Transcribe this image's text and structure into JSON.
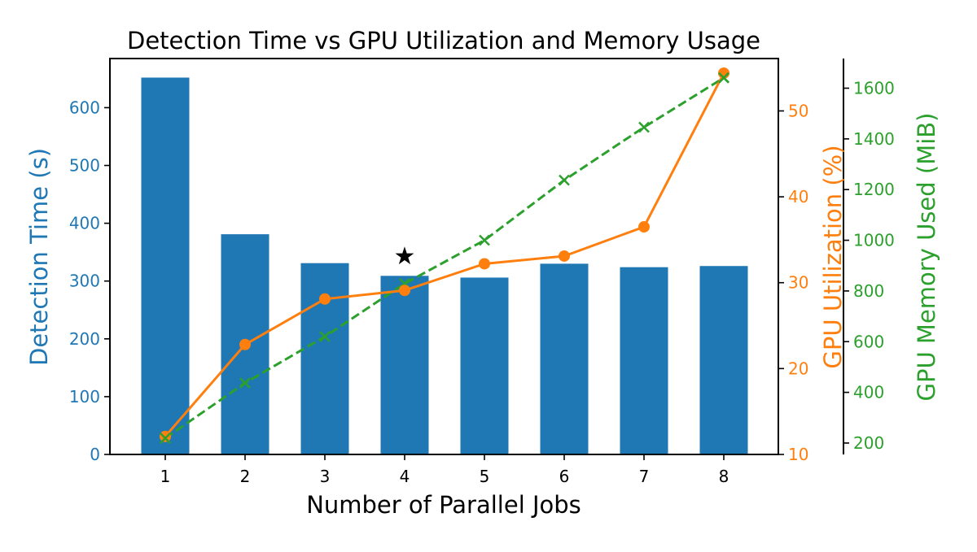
{
  "chart_data": {
    "type": "bar",
    "title": "Detection Time vs GPU Utilization and Memory Usage",
    "xlabel": "Number of Parallel Jobs",
    "categories": [
      "1",
      "2",
      "3",
      "4",
      "5",
      "6",
      "7",
      "8"
    ],
    "series": [
      {
        "name": "Detection Time (s)",
        "type": "bar",
        "axis": "left",
        "color": "#1f77b4",
        "values": [
          652,
          381,
          331,
          309,
          306,
          330,
          324,
          326
        ]
      },
      {
        "name": "GPU Utilization (%)",
        "type": "line",
        "axis": "right1",
        "color": "#ff7f0e",
        "marker": "circle",
        "linestyle": "solid",
        "values": [
          12.1,
          22.8,
          28.1,
          29.1,
          32.2,
          33.1,
          36.5,
          54.4
        ]
      },
      {
        "name": "GPU Memory Used (MiB)",
        "type": "line",
        "axis": "right2",
        "color": "#2ca02c",
        "marker": "x",
        "linestyle": "dashed",
        "values": [
          219,
          437,
          620,
          829,
          1000,
          1237,
          1446,
          1641
        ]
      }
    ],
    "axes": {
      "left": {
        "label": "Detection Time (s)",
        "ticks": [
          0,
          100,
          200,
          300,
          400,
          500,
          600
        ],
        "ylim": [
          0,
          685
        ],
        "color": "#1f77b4"
      },
      "right1": {
        "label": "GPU Utilization (%)",
        "ticks": [
          10,
          20,
          30,
          40,
          50
        ],
        "ylim": [
          10,
          56.1
        ],
        "color": "#ff7f0e"
      },
      "right2": {
        "label": "GPU Memory Used (MiB)",
        "ticks": [
          200,
          400,
          600,
          800,
          1000,
          1200,
          1400,
          1600
        ],
        "ylim": [
          155,
          1717
        ],
        "color": "#2ca02c"
      }
    },
    "annotations": [
      {
        "type": "star",
        "x": "4",
        "text": "★",
        "note": "optimal point marker above bar 4"
      }
    ],
    "grid": false,
    "legend": null
  }
}
